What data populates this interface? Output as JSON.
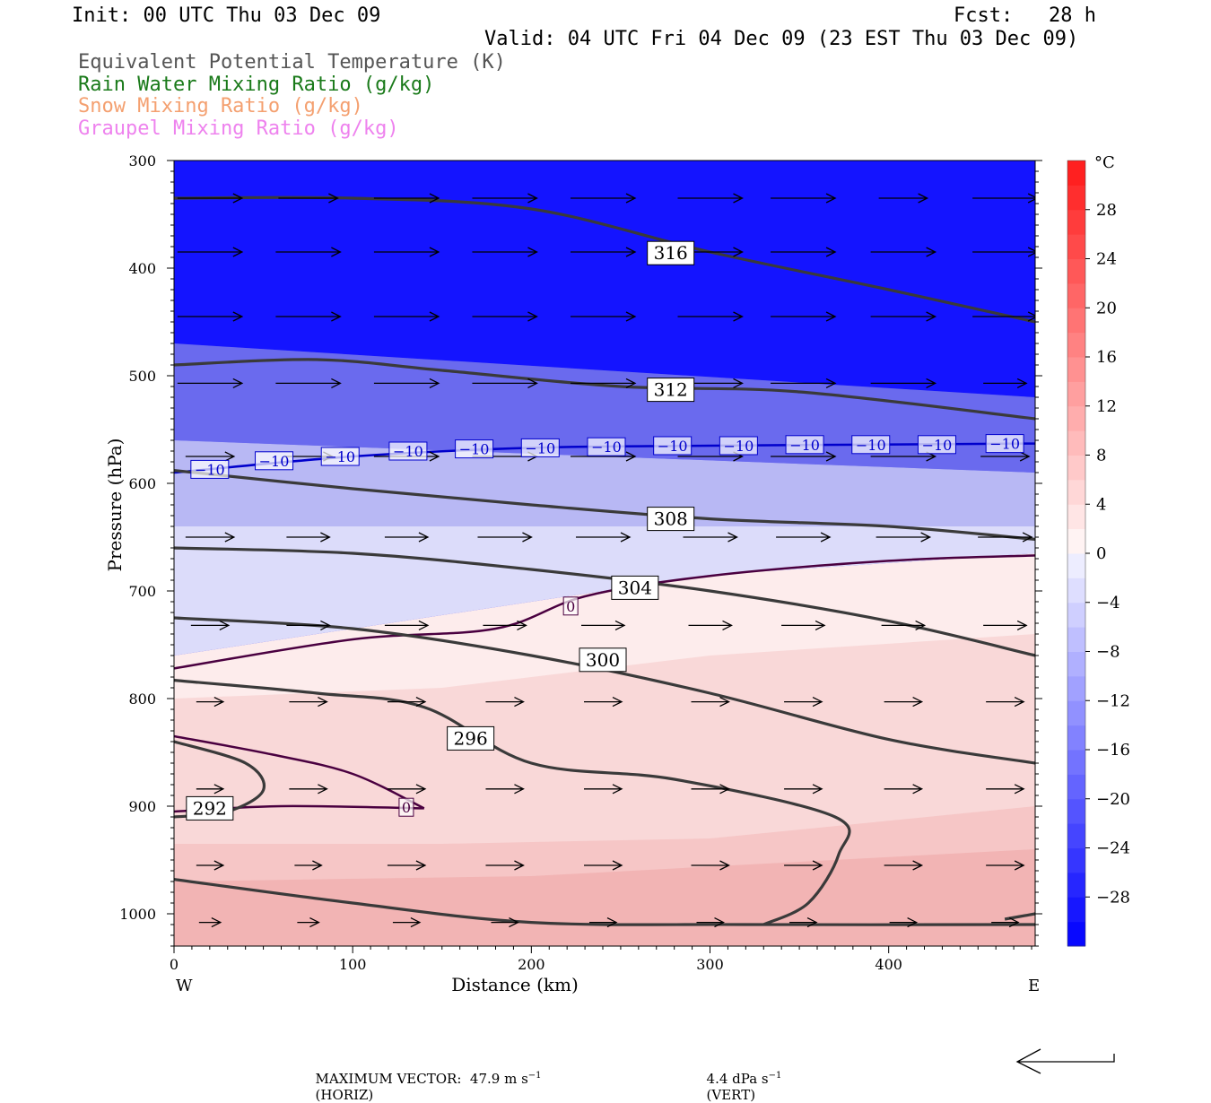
{
  "header": {
    "init": "Init: 00 UTC Thu 03 Dec 09",
    "fcst": "Fcst:   28 h",
    "valid": "Valid: 04 UTC Fri 04 Dec 09 (23 EST Thu 03 Dec 09)",
    "legend": [
      {
        "text": "Equivalent Potential Temperature (K)",
        "color": "#555555"
      },
      {
        "text": "Rain Water Mixing Ratio (g/kg)",
        "color": "#1a7a1a"
      },
      {
        "text": "Snow Mixing Ratio (g/kg)",
        "color": "#f4a070"
      },
      {
        "text": "Graupel Mixing Ratio (g/kg)",
        "color": "#ee82ee"
      }
    ]
  },
  "chart_data": {
    "type": "cross-section",
    "x": {
      "label": "Distance (km)",
      "range": [
        0,
        482
      ],
      "ticks": [
        0,
        100,
        200,
        300,
        400
      ],
      "left_label": "W",
      "right_label": "E"
    },
    "y": {
      "label": "Pressure (hPa)",
      "range": [
        300,
        1030
      ],
      "inverted": true,
      "ticks": [
        300,
        400,
        500,
        600,
        700,
        800,
        900,
        1000
      ]
    },
    "colorbar": {
      "unit": "°C",
      "labels": [
        "28",
        "24",
        "20",
        "16",
        "12",
        "8",
        "4",
        "0",
        "−4",
        "−8",
        "−12",
        "−16",
        "−20",
        "−24",
        "−28"
      ],
      "values": [
        28,
        24,
        20,
        16,
        12,
        8,
        4,
        0,
        -4,
        -8,
        -12,
        -16,
        -20,
        -24,
        -28
      ],
      "range": [
        -32,
        32
      ]
    },
    "temperature_layers": [
      {
        "name": "cold-upper",
        "points": [
          [
            0,
            300
          ],
          [
            482,
            300
          ],
          [
            482,
            520
          ],
          [
            0,
            470
          ]
        ],
        "color": "#1414ff"
      },
      {
        "name": "cold-mid",
        "points": [
          [
            0,
            470
          ],
          [
            482,
            520
          ],
          [
            482,
            590
          ],
          [
            0,
            560
          ]
        ],
        "color": "#6a6aee"
      },
      {
        "name": "cool",
        "points": [
          [
            0,
            560
          ],
          [
            482,
            590
          ],
          [
            482,
            640
          ],
          [
            0,
            640
          ]
        ],
        "color": "#b8b8f4"
      },
      {
        "name": "cool-low",
        "points": [
          [
            0,
            640
          ],
          [
            482,
            640
          ],
          [
            482,
            665
          ],
          [
            300,
            685
          ],
          [
            200,
            710
          ],
          [
            100,
            735
          ],
          [
            0,
            760
          ]
        ],
        "color": "#dcdcfa"
      },
      {
        "name": "warm-1",
        "points": [
          [
            0,
            760
          ],
          [
            100,
            735
          ],
          [
            200,
            710
          ],
          [
            300,
            685
          ],
          [
            482,
            665
          ],
          [
            482,
            1030
          ],
          [
            0,
            1030
          ]
        ],
        "color": "#fdecec"
      },
      {
        "name": "warm-2",
        "points": [
          [
            0,
            800
          ],
          [
            150,
            790
          ],
          [
            300,
            760
          ],
          [
            482,
            740
          ],
          [
            482,
            1030
          ],
          [
            0,
            1030
          ]
        ],
        "color": "#f9d8d8"
      },
      {
        "name": "warm-3",
        "points": [
          [
            0,
            935
          ],
          [
            150,
            935
          ],
          [
            300,
            930
          ],
          [
            482,
            900
          ],
          [
            482,
            1030
          ],
          [
            0,
            1030
          ]
        ],
        "color": "#f6c6c6"
      },
      {
        "name": "warm-4",
        "points": [
          [
            0,
            970
          ],
          [
            200,
            965
          ],
          [
            482,
            940
          ],
          [
            482,
            1030
          ],
          [
            0,
            1030
          ]
        ],
        "color": "#f2b4b4"
      }
    ],
    "theta_e_contours": [
      {
        "label": "316",
        "label_at": [
          278,
          386
        ],
        "points": [
          [
            0,
            335
          ],
          [
            100,
            335
          ],
          [
            200,
            345
          ],
          [
            300,
            385
          ],
          [
            400,
            420
          ],
          [
            482,
            450
          ]
        ]
      },
      {
        "label": "312",
        "label_at": [
          278,
          513
        ],
        "points": [
          [
            0,
            490
          ],
          [
            80,
            485
          ],
          [
            150,
            495
          ],
          [
            250,
            510
          ],
          [
            350,
            515
          ],
          [
            482,
            540
          ]
        ]
      },
      {
        "label": "308",
        "label_at": [
          278,
          633
        ],
        "points": [
          [
            0,
            588
          ],
          [
            100,
            605
          ],
          [
            200,
            620
          ],
          [
            300,
            633
          ],
          [
            400,
            640
          ],
          [
            482,
            652
          ]
        ]
      },
      {
        "label": "304",
        "label_at": [
          258,
          697
        ],
        "points": [
          [
            0,
            660
          ],
          [
            100,
            665
          ],
          [
            200,
            680
          ],
          [
            300,
            700
          ],
          [
            400,
            728
          ],
          [
            482,
            760
          ]
        ]
      },
      {
        "label": "300",
        "label_at": [
          240,
          764
        ],
        "points": [
          [
            0,
            725
          ],
          [
            100,
            735
          ],
          [
            200,
            760
          ],
          [
            300,
            795
          ],
          [
            400,
            838
          ],
          [
            482,
            860
          ]
        ]
      },
      {
        "label": "296",
        "label_at": [
          166,
          837
        ],
        "points": [
          [
            0,
            783
          ],
          [
            80,
            795
          ],
          [
            140,
            808
          ],
          [
            200,
            860
          ],
          [
            280,
            875
          ],
          [
            370,
            910
          ],
          [
            372,
            945
          ],
          [
            355,
            990
          ],
          [
            330,
            1010
          ]
        ]
      },
      {
        "label": "292",
        "label_at": [
          20,
          902
        ],
        "points": [
          [
            0,
            840
          ],
          [
            40,
            860
          ],
          [
            50,
            885
          ],
          [
            30,
            905
          ],
          [
            0,
            910
          ]
        ]
      },
      {
        "label": "",
        "label_at": null,
        "points": [
          [
            0,
            968
          ],
          [
            100,
            990
          ],
          [
            200,
            1008
          ],
          [
            320,
            1010
          ],
          [
            482,
            1010
          ]
        ]
      },
      {
        "label": "",
        "label_at": null,
        "points": [
          [
            465,
            1005
          ],
          [
            482,
            1000
          ]
        ]
      }
    ],
    "isotherms": [
      {
        "label": "−10",
        "color": "#0000cc",
        "labels_at": [
          [
            20,
            587
          ],
          [
            56,
            579
          ],
          [
            93,
            575
          ],
          [
            131,
            570
          ],
          [
            168,
            568
          ],
          [
            205,
            567
          ],
          [
            242,
            566
          ],
          [
            279,
            565
          ],
          [
            316,
            565
          ],
          [
            353,
            564
          ],
          [
            390,
            564
          ],
          [
            427,
            564
          ],
          [
            465,
            563
          ]
        ],
        "points": [
          [
            0,
            590
          ],
          [
            100,
            575
          ],
          [
            200,
            567
          ],
          [
            300,
            565
          ],
          [
            482,
            563
          ]
        ]
      },
      {
        "label": "0",
        "color": "#4a0040",
        "labels_at": [
          [
            222,
            714
          ],
          [
            130,
            901
          ]
        ],
        "points": [
          [
            0,
            772
          ],
          [
            100,
            745
          ],
          [
            180,
            735
          ],
          [
            230,
            705
          ],
          [
            300,
            686
          ],
          [
            400,
            672
          ],
          [
            482,
            667
          ]
        ]
      },
      {
        "label": "0",
        "color": "#4a0040",
        "labels_at": null,
        "points": [
          [
            0,
            835
          ],
          [
            55,
            852
          ],
          [
            100,
            870
          ],
          [
            140,
            902
          ]
        ]
      },
      {
        "label": "",
        "color": "#4a0040",
        "labels_at": null,
        "points": [
          [
            0,
            905
          ],
          [
            60,
            900
          ],
          [
            140,
            902
          ]
        ]
      }
    ],
    "wind_vectors": {
      "rows": [
        335,
        385,
        445,
        507,
        575,
        650,
        732,
        803,
        884,
        955,
        1008
      ],
      "columns": [
        20,
        75,
        130,
        185,
        240,
        300,
        352,
        408,
        465
      ],
      "lengths": [
        [
          24,
          22,
          24,
          24,
          24,
          24,
          24,
          18,
          24
        ],
        [
          24,
          24,
          24,
          24,
          24,
          24,
          24,
          24,
          24
        ],
        [
          24,
          24,
          24,
          24,
          24,
          24,
          24,
          24,
          24
        ],
        [
          24,
          24,
          24,
          24,
          24,
          24,
          24,
          24,
          16
        ],
        [
          18,
          18,
          24,
          24,
          24,
          24,
          24,
          24,
          18
        ],
        [
          18,
          16,
          16,
          20,
          20,
          20,
          20,
          20,
          20
        ],
        [
          14,
          16,
          16,
          16,
          16,
          16,
          16,
          16,
          16
        ],
        [
          10,
          14,
          14,
          14,
          14,
          14,
          14,
          14,
          14
        ],
        [
          10,
          14,
          14,
          14,
          14,
          14,
          14,
          14,
          14
        ],
        [
          10,
          10,
          14,
          14,
          14,
          14,
          14,
          14,
          14
        ],
        [
          8,
          8,
          10,
          10,
          10,
          10,
          10,
          10,
          10
        ]
      ]
    },
    "max_vector": {
      "text": "MAXIMUM VECTOR:  47.9 m s",
      "horiz": "(HORIZ)",
      "vert_text": "4.4 dPa s",
      "vert_label": "(VERT)"
    }
  }
}
